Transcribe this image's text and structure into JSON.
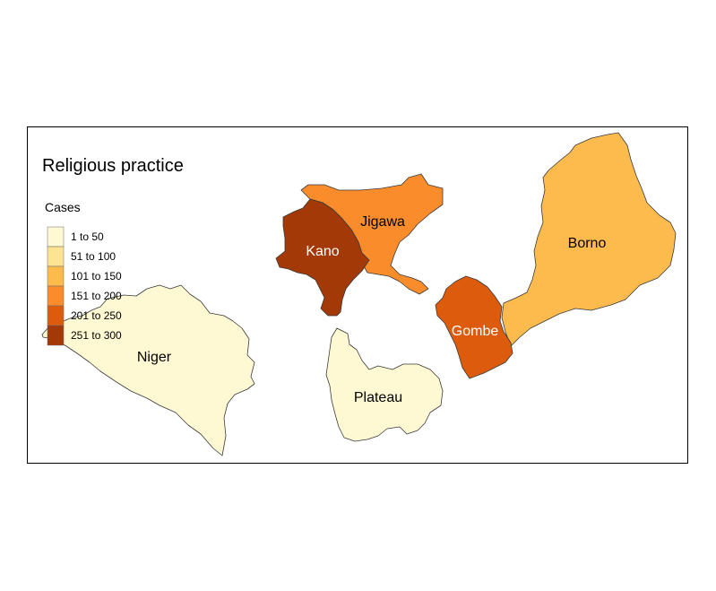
{
  "map": {
    "title": "Religious practice",
    "legend": {
      "title": "Cases",
      "classes": [
        {
          "label": "1 to 50",
          "color": "#fef8d3"
        },
        {
          "label": "51 to 100",
          "color": "#fee392"
        },
        {
          "label": "101 to 150",
          "color": "#fdbb4d"
        },
        {
          "label": "151 to 200",
          "color": "#fb8c2c"
        },
        {
          "label": "201 to 250",
          "color": "#dd5b0d"
        },
        {
          "label": "251 to 300",
          "color": "#a33906"
        }
      ]
    },
    "regions": [
      {
        "name": "Niger",
        "class": 0
      },
      {
        "name": "Plateau",
        "class": 0
      },
      {
        "name": "Borno",
        "class": 2
      },
      {
        "name": "Jigawa",
        "class": 3
      },
      {
        "name": "Gombe",
        "class": 4
      },
      {
        "name": "Kano",
        "class": 5
      }
    ]
  }
}
